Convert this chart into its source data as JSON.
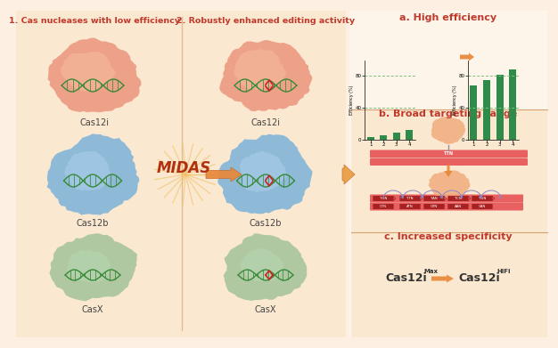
{
  "bg_color": "#fdf0e2",
  "left_bg": "#fae8d0",
  "right_bg": "#fdf5ea",
  "divider_color": "#e8a87c",
  "title1": "1. Cas nucleases with low efficiency",
  "title2": "2. Robustly enhanced editing activity",
  "title_color": "#c0392b",
  "section_a_title": "a. High efficiency",
  "section_b_title": "b. Broad targeting range",
  "section_c_title": "c. Increased specificity",
  "section_title_color": "#c0392b",
  "midas_text": "MIDAS",
  "midas_color": "#b03010",
  "cas12i_color_light": "#f0a080",
  "cas12i_color": "#e8836a",
  "cas12b_color": "#6aabdc",
  "casx_color": "#8fbb8f",
  "dna_color": "#3a8a3a",
  "bar_before": [
    3,
    5,
    8,
    12
  ],
  "bar_after": [
    68,
    75,
    82,
    88
  ],
  "bar_color": "#2e8b4a",
  "bar_dashed_color": "#7cbf7c",
  "arrow_color": "#e8883a",
  "dna_strand_color": "#e06060",
  "arc_color": "#8888cc",
  "spec_arrow_color": "#e8883a"
}
